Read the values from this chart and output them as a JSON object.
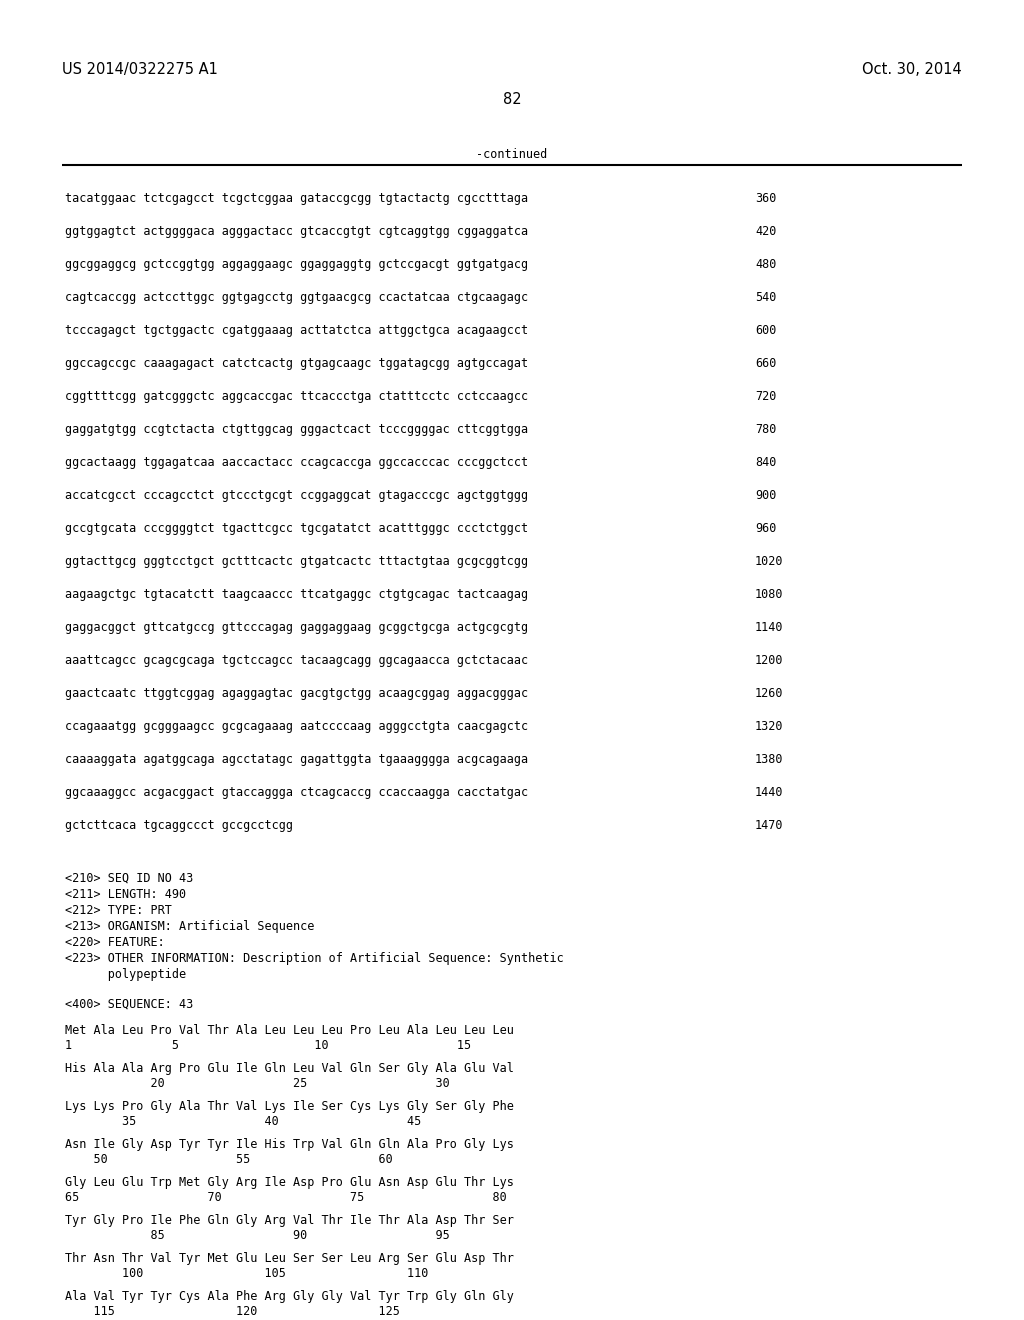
{
  "patent_number": "US 2014/0322275 A1",
  "date": "Oct. 30, 2014",
  "page_number": "82",
  "continued_label": "-continued",
  "background_color": "#ffffff",
  "text_color": "#000000",
  "font_size_header": 10.5,
  "font_size_body": 8.5,
  "sequence_lines": [
    [
      "tacatggaac tctcgagcct tcgctcggaa gataccgcgg tgtactactg cgcctttaga",
      "360"
    ],
    [
      "ggtggagtct actggggaca agggactacc gtcaccgtgt cgtcaggtgg cggaggatca",
      "420"
    ],
    [
      "ggcggaggcg gctccggtgg aggaggaagc ggaggaggtg gctccgacgt ggtgatgacg",
      "480"
    ],
    [
      "cagtcaccgg actccttggc ggtgagcctg ggtgaacgcg ccactatcaa ctgcaagagc",
      "540"
    ],
    [
      "tcccagagct tgctggactc cgatggaaag acttatctca attggctgca acagaagcct",
      "600"
    ],
    [
      "ggccagccgc caaagagact catctcactg gtgagcaagc tggatagcgg agtgccagat",
      "660"
    ],
    [
      "cggttttcgg gatcgggctc aggcaccgac ttcaccctga ctatttcctc cctccaagcc",
      "720"
    ],
    [
      "gaggatgtgg ccgtctacta ctgttggcag gggactcact tcccggggac cttcggtgga",
      "780"
    ],
    [
      "ggcactaagg tggagatcaa aaccactacc ccagcaccga ggccacccac cccggctcct",
      "840"
    ],
    [
      "accatcgcct cccagcctct gtccctgcgt ccggaggcat gtagacccgc agctggtggg",
      "900"
    ],
    [
      "gccgtgcata cccggggtct tgacttcgcc tgcgatatct acatttgggc ccctctggct",
      "960"
    ],
    [
      "ggtacttgcg gggtcctgct gctttcactc gtgatcactc tttactgtaa gcgcggtcgg",
      "1020"
    ],
    [
      "aagaagctgc tgtacatctt taagcaaccc ttcatgaggc ctgtgcagac tactcaagag",
      "1080"
    ],
    [
      "gaggacggct gttcatgccg gttcccagag gaggaggaag gcggctgcga actgcgcgtg",
      "1140"
    ],
    [
      "aaattcagcc gcagcgcaga tgctccagcc tacaagcagg ggcagaacca gctctacaac",
      "1200"
    ],
    [
      "gaactcaatc ttggtcggag agaggagtac gacgtgctgg acaagcggag aggacgggac",
      "1260"
    ],
    [
      "ccagaaatgg gcgggaagcc gcgcagaaag aatccccaag agggcctgta caacgagctc",
      "1320"
    ],
    [
      "caaaaggata agatggcaga agcctatagc gagattggta tgaaagggga acgcagaaga",
      "1380"
    ],
    [
      "ggcaaaggcc acgacggact gtaccaggga ctcagcaccg ccaccaagga cacctatgac",
      "1440"
    ],
    [
      "gctcttcaca tgcaggccct gccgcctcgg",
      "1470"
    ]
  ],
  "metadata_lines": [
    "<210> SEQ ID NO 43",
    "<211> LENGTH: 490",
    "<212> TYPE: PRT",
    "<213> ORGANISM: Artificial Sequence",
    "<220> FEATURE:",
    "<223> OTHER INFORMATION: Description of Artificial Sequence: Synthetic",
    "      polypeptide"
  ],
  "sequence_label": "<400> SEQUENCE: 43",
  "protein_lines": [
    {
      "seq": "Met Ala Leu Pro Val Thr Ala Leu Leu Leu Pro Leu Ala Leu Leu Leu",
      "nums": "1              5                   10                  15"
    },
    {
      "seq": "His Ala Ala Arg Pro Glu Ile Gln Leu Val Gln Ser Gly Ala Glu Val",
      "nums": "            20                  25                  30"
    },
    {
      "seq": "Lys Lys Pro Gly Ala Thr Val Lys Ile Ser Cys Lys Gly Ser Gly Phe",
      "nums": "        35                  40                  45"
    },
    {
      "seq": "Asn Ile Gly Asp Tyr Tyr Ile His Trp Val Gln Gln Ala Pro Gly Lys",
      "nums": "    50                  55                  60"
    },
    {
      "seq": "Gly Leu Glu Trp Met Gly Arg Ile Asp Pro Glu Asn Asp Glu Thr Lys",
      "nums": "65                  70                  75                  80"
    },
    {
      "seq": "Tyr Gly Pro Ile Phe Gln Gly Arg Val Thr Ile Thr Ala Asp Thr Ser",
      "nums": "            85                  90                  95"
    },
    {
      "seq": "Thr Asn Thr Val Tyr Met Glu Leu Ser Ser Leu Arg Ser Glu Asp Thr",
      "nums": "        100                 105                 110"
    },
    {
      "seq": "Ala Val Tyr Tyr Cys Ala Phe Arg Gly Gly Val Tyr Trp Gly Gln Gly",
      "nums": "    115                 120                 125"
    }
  ]
}
